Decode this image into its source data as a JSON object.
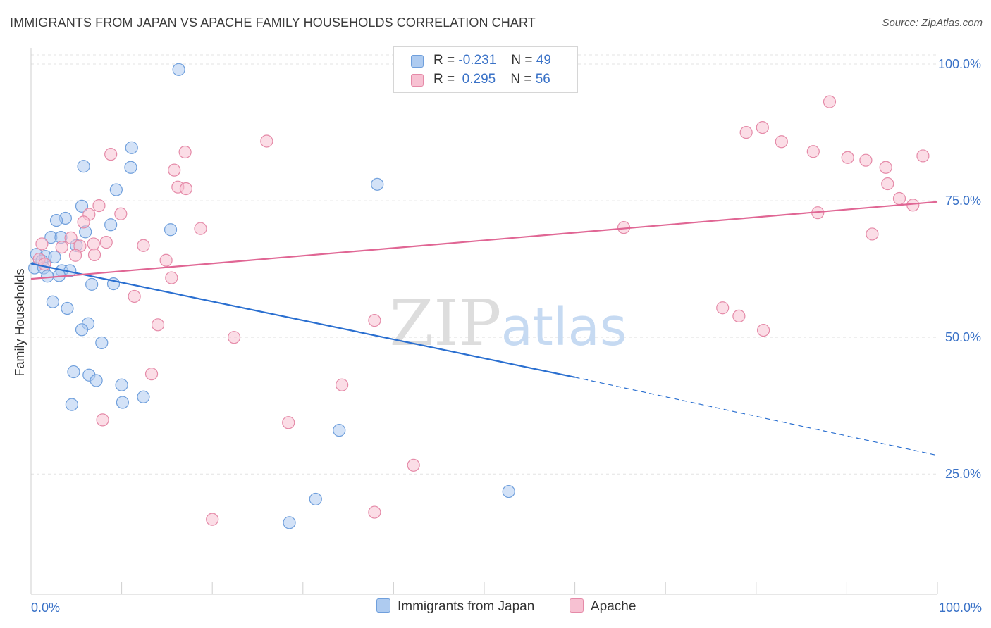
{
  "title": "IMMIGRANTS FROM JAPAN VS APACHE FAMILY HOUSEHOLDS CORRELATION CHART",
  "source": "Source: ZipAtlas.com",
  "legend": {
    "japan": {
      "r_label": "R =",
      "r_value": "-0.231",
      "n_label": "N =",
      "n_value": "49"
    },
    "apache": {
      "r_label": "R =",
      "r_value": "0.295",
      "n_label": "N =",
      "n_value": "56"
    }
  },
  "colors": {
    "japan_fill": "#aecbf0",
    "japan_stroke": "#6f9fdc",
    "japan_line": "#2a6fd0",
    "apache_fill": "#f7c1d2",
    "apache_stroke": "#e58aa8",
    "apache_line": "#e06694",
    "tick_label": "#3a72c7",
    "grid": "#e3e3e3"
  },
  "chart_data": {
    "type": "scatter",
    "title": "IMMIGRANTS FROM JAPAN VS APACHE FAMILY HOUSEHOLDS CORRELATION CHART",
    "ylabel": "Family Households",
    "xlabel": "",
    "x_tick_labels": [
      "0.0%",
      "100.0%"
    ],
    "y_tick_labels": [
      "100.0%",
      "75.0%",
      "50.0%",
      "25.0%"
    ],
    "y_ticks": [
      100,
      75,
      50,
      25
    ],
    "xlim": [
      0,
      100
    ],
    "ylim": [
      3,
      104
    ],
    "grid": true,
    "watermark": {
      "zip": "ZIP",
      "atlas": "atlas"
    },
    "legend_labels": [
      "Immigrants from Japan",
      "Apache"
    ],
    "series": [
      {
        "name": "Immigrants from Japan",
        "color": "#6f9fdc",
        "points": [
          [
            16.3,
            99.0
          ],
          [
            11.1,
            84.7
          ],
          [
            5.8,
            81.3
          ],
          [
            11.0,
            81.1
          ],
          [
            38.2,
            78.0
          ],
          [
            9.4,
            77.0
          ],
          [
            5.6,
            74.0
          ],
          [
            3.8,
            71.8
          ],
          [
            2.8,
            71.4
          ],
          [
            8.8,
            70.6
          ],
          [
            15.4,
            69.7
          ],
          [
            6.0,
            69.3
          ],
          [
            2.2,
            68.3
          ],
          [
            3.3,
            68.3
          ],
          [
            5.0,
            66.8
          ],
          [
            0.6,
            65.2
          ],
          [
            1.6,
            64.8
          ],
          [
            2.6,
            64.7
          ],
          [
            1.2,
            64.0
          ],
          [
            0.4,
            62.7
          ],
          [
            1.4,
            62.7
          ],
          [
            3.4,
            62.2
          ],
          [
            4.3,
            62.2
          ],
          [
            1.8,
            61.2
          ],
          [
            3.1,
            61.3
          ],
          [
            6.7,
            59.7
          ],
          [
            9.1,
            59.8
          ],
          [
            2.4,
            56.5
          ],
          [
            4.0,
            55.3
          ],
          [
            6.3,
            52.5
          ],
          [
            5.6,
            51.4
          ],
          [
            7.8,
            49.0
          ],
          [
            4.7,
            43.7
          ],
          [
            6.4,
            43.1
          ],
          [
            7.2,
            42.1
          ],
          [
            10.0,
            41.3
          ],
          [
            12.4,
            39.1
          ],
          [
            10.1,
            38.1
          ],
          [
            4.5,
            37.7
          ],
          [
            34.0,
            33.0
          ],
          [
            31.4,
            20.4
          ],
          [
            52.7,
            21.8
          ],
          [
            28.5,
            16.1
          ]
        ]
      },
      {
        "name": "Apache",
        "color": "#e58aa8",
        "points": [
          [
            88.1,
            93.1
          ],
          [
            80.7,
            88.4
          ],
          [
            78.9,
            87.5
          ],
          [
            26.0,
            85.9
          ],
          [
            82.8,
            85.8
          ],
          [
            17.0,
            83.9
          ],
          [
            8.8,
            83.5
          ],
          [
            86.3,
            84.0
          ],
          [
            98.4,
            83.2
          ],
          [
            90.1,
            82.9
          ],
          [
            92.1,
            82.4
          ],
          [
            94.3,
            81.1
          ],
          [
            15.8,
            80.6
          ],
          [
            94.5,
            78.1
          ],
          [
            16.2,
            77.5
          ],
          [
            17.1,
            77.2
          ],
          [
            95.8,
            75.4
          ],
          [
            7.5,
            74.1
          ],
          [
            97.3,
            74.2
          ],
          [
            9.9,
            72.6
          ],
          [
            6.4,
            72.5
          ],
          [
            86.8,
            72.8
          ],
          [
            5.8,
            71.1
          ],
          [
            18.7,
            69.9
          ],
          [
            65.4,
            70.1
          ],
          [
            92.8,
            68.9
          ],
          [
            4.4,
            68.2
          ],
          [
            1.2,
            67.1
          ],
          [
            8.3,
            67.4
          ],
          [
            6.9,
            67.1
          ],
          [
            12.4,
            66.8
          ],
          [
            5.4,
            66.7
          ],
          [
            3.4,
            66.5
          ],
          [
            7.0,
            65.1
          ],
          [
            4.9,
            65.0
          ],
          [
            0.9,
            64.3
          ],
          [
            14.9,
            64.1
          ],
          [
            1.5,
            63.4
          ],
          [
            15.5,
            60.9
          ],
          [
            11.4,
            57.5
          ],
          [
            76.3,
            55.4
          ],
          [
            78.1,
            53.9
          ],
          [
            37.9,
            53.1
          ],
          [
            14.0,
            52.3
          ],
          [
            80.8,
            51.3
          ],
          [
            22.4,
            50.0
          ],
          [
            13.3,
            43.3
          ],
          [
            34.3,
            41.3
          ],
          [
            7.9,
            34.9
          ],
          [
            28.4,
            34.4
          ],
          [
            42.2,
            26.6
          ],
          [
            37.9,
            18.0
          ],
          [
            20.0,
            16.7
          ]
        ]
      }
    ],
    "trend_lines": [
      {
        "name": "Immigrants from Japan",
        "x_start": 0,
        "y_start": 63.5,
        "x_solid_end": 60,
        "y_solid_end": 42.7,
        "x_end": 100,
        "y_end": 28.4
      },
      {
        "name": "Apache",
        "x_start": 0,
        "y_start": 60.7,
        "x_end": 100,
        "y_end": 74.8
      }
    ]
  }
}
